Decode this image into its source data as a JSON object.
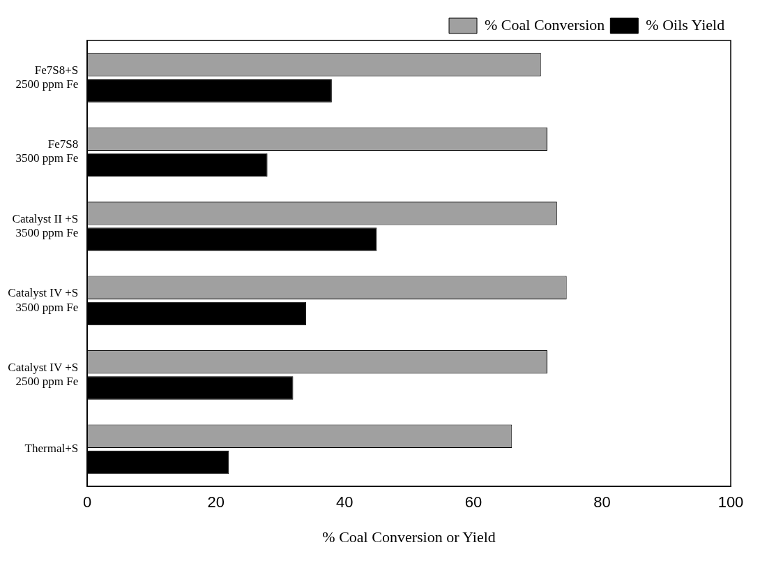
{
  "chart_data": {
    "type": "bar",
    "orientation": "horizontal",
    "xlabel": "% Coal Conversion or Yield",
    "categories": [
      "Fe7S8+S\n2500 ppm Fe",
      "Fe7S8\n3500 ppm Fe",
      "Catalyst II +S\n3500 ppm Fe",
      "Catalyst IV +S\n3500 ppm Fe",
      "Catalyst IV +S\n2500 ppm Fe",
      "Thermal+S"
    ],
    "series": [
      {
        "name": "% Coal Conversion",
        "color": "#a0a0a0",
        "values": [
          70.5,
          71.5,
          73,
          74.5,
          71.5,
          66
        ]
      },
      {
        "name": "% Oils Yield",
        "color": "#000000",
        "values": [
          38,
          28,
          45,
          34,
          32,
          22
        ]
      }
    ],
    "xlim": [
      0,
      100
    ],
    "xticks": [
      0,
      20,
      40,
      60,
      80,
      100
    ],
    "grid": false,
    "legend": "top right"
  }
}
